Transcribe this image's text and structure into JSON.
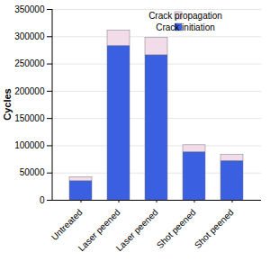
{
  "chart_data": {
    "type": "bar",
    "ylabel": "Cycles",
    "categories": [
      "Untreated",
      "Laser peened",
      "Laser peened",
      "Shot peened",
      "Shot peened"
    ],
    "series": [
      {
        "name": "Crack initiation",
        "color": "#3a5fe0",
        "values": [
          35000,
          283000,
          266000,
          88000,
          72000
        ]
      },
      {
        "name": "Crack propagation",
        "color": "#f2dcea",
        "values": [
          7000,
          28000,
          32000,
          13000,
          11000
        ]
      }
    ],
    "ylim": [
      0,
      350000
    ],
    "yticks": [
      0,
      50000,
      100000,
      150000,
      200000,
      250000,
      300000,
      350000
    ],
    "grid": true,
    "stacked": true,
    "legend": "top-right"
  }
}
